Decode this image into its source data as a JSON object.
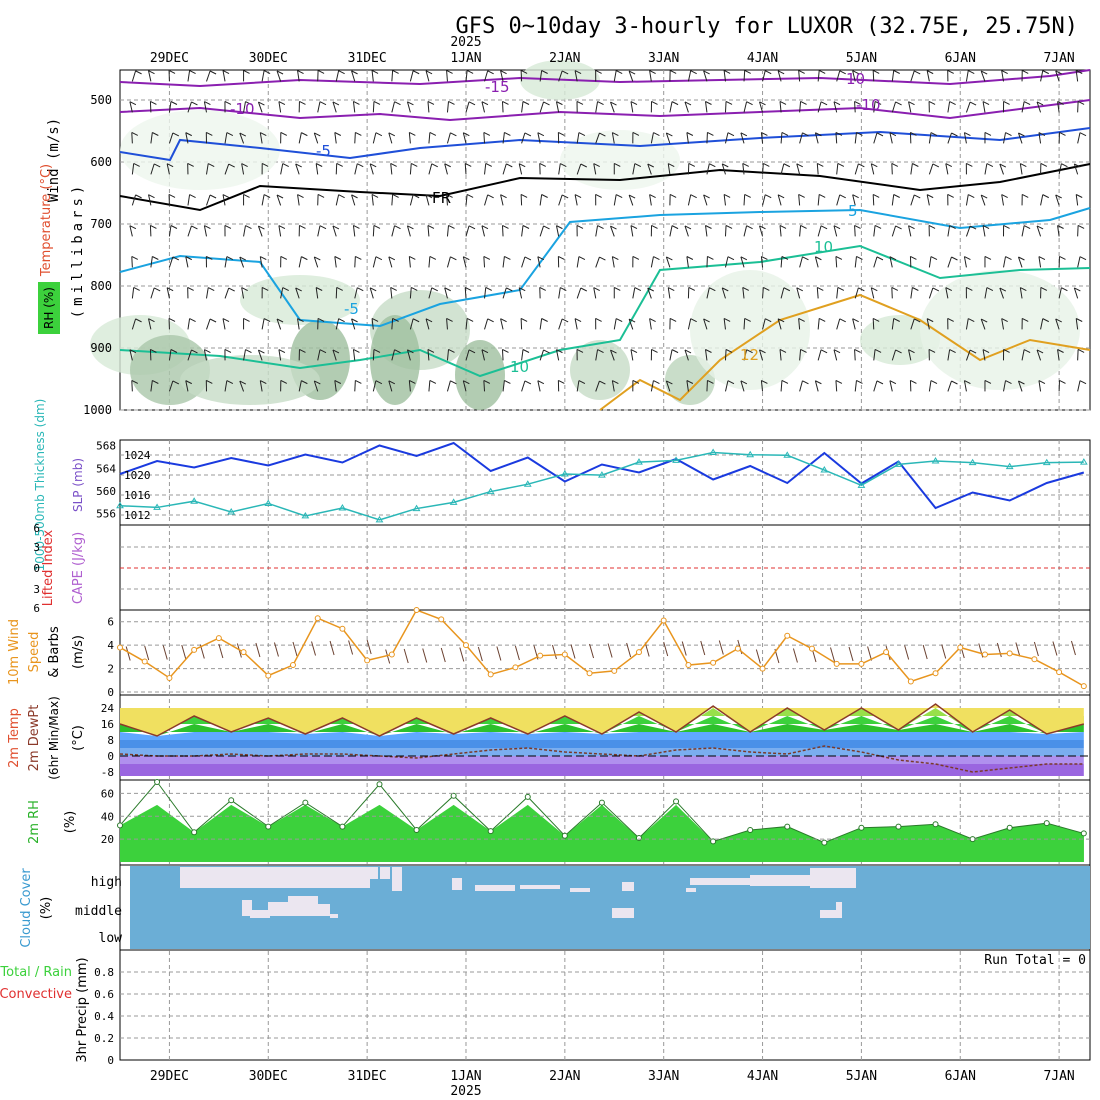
{
  "title": "GFS 0~10day 3-hourly for LUXOR (32.75E, 25.75N)",
  "year_label": "2025",
  "dates": [
    "29DEC",
    "30DEC",
    "31DEC",
    "1JAN",
    "2JAN",
    "3JAN",
    "4JAN",
    "5JAN",
    "6JAN",
    "7JAN"
  ],
  "panels": {
    "upper": {
      "labels": {
        "wind": "Wind (m/s)",
        "temperature": "Temperature (°C)",
        "rh": "RH (%)",
        "millibars": "(millibars)"
      },
      "yticks": [
        "500",
        "600",
        "700",
        "800",
        "900",
        "1000"
      ],
      "contour_labels": [
        "-15",
        "-10",
        "-5",
        "FR",
        "5",
        "10",
        "12",
        "-5",
        "-10",
        "10",
        "10"
      ]
    },
    "thickness": {
      "labels": {
        "thickness": "1000-500mb Thickness (dm)",
        "slp": "SLP (mb)"
      },
      "left_ticks": [
        "568",
        "564",
        "560",
        "556"
      ],
      "right_ticks": [
        "1024",
        "1020",
        "1016",
        "1012"
      ]
    },
    "cape": {
      "labels": {
        "li": "Lifted Index",
        "cape": "CAPE (J/kg)"
      },
      "yticks": [
        "6",
        "3",
        "0",
        "3",
        "6"
      ]
    },
    "wind10m": {
      "labels": {
        "main": "10m Wind",
        "speed": "Speed",
        "barbs": "& Barbs",
        "units": "(m/s)"
      },
      "yticks": [
        "6",
        "4",
        "2",
        "0"
      ]
    },
    "temp2m": {
      "labels": {
        "temp": "2m Temp",
        "dewpt": "2m DewPt",
        "minmax": "(6hr Min/Max)",
        "units": "(°C)"
      },
      "yticks": [
        "24",
        "16",
        "8",
        "0",
        "-8"
      ]
    },
    "rh2m": {
      "labels": {
        "rh": "2m RH",
        "units": "(%)"
      },
      "yticks": [
        "60",
        "40",
        "20"
      ]
    },
    "cloud": {
      "labels": {
        "cloud": "Cloud Cover",
        "units": "(%)"
      },
      "levels": [
        "high",
        "middle",
        "low"
      ]
    },
    "precip": {
      "labels": {
        "total": "Total / Rain",
        "conv": "Convective",
        "precip": "3hr Precip (mm)"
      },
      "yticks": [
        "0.8",
        "0.6",
        "0.4",
        "0.2",
        "0"
      ],
      "run_total": "Run Total = 0"
    }
  },
  "colors": {
    "cloud_bg": "#6baed6",
    "cloud_fill": "#ebe6f0",
    "slp": "#1a3adf",
    "thickness": "#2ab7b7",
    "wind10m": "#e8951e",
    "temp_outline": "#8b3a2a",
    "rh_fill": "#3cd13c",
    "li_zero": "#e03030"
  },
  "chart_data": [
    {
      "type": "line",
      "name": "thickness_slp",
      "x": [
        0,
        3,
        6,
        9,
        12,
        15,
        18,
        21,
        24,
        27,
        30,
        33,
        36,
        39,
        42,
        45,
        48,
        51,
        54,
        57,
        60,
        63,
        66,
        69,
        72,
        75,
        78
      ],
      "series": [
        {
          "name": "SLP (mb)",
          "values": [
            1020.2,
            1022.8,
            1021.5,
            1023.4,
            1021.9,
            1024.1,
            1022.5,
            1025.9,
            1023.8,
            1026.4,
            1020.8,
            1023.5,
            1018.7,
            1022.1,
            1020.5,
            1023.2,
            1019.1,
            1021.8,
            1018.4,
            1024.4,
            1018.3,
            1022.7,
            1013.4,
            1016.5,
            1014.9,
            1018.4,
            1020.5
          ]
        },
        {
          "name": "1000-500mb Thickness (dm)",
          "values": [
            557.4,
            557.1,
            558.2,
            556.3,
            557.8,
            555.6,
            557.0,
            554.9,
            556.9,
            558.0,
            559.9,
            561.2,
            563.0,
            562.8,
            565.1,
            565.4,
            566.8,
            566.4,
            566.3,
            563.7,
            561.0,
            564.7,
            565.3,
            565.0,
            564.3,
            565.0,
            565.1
          ]
        }
      ],
      "ylim_left": [
        554,
        569
      ],
      "ylim_right": [
        1010,
        1027
      ]
    },
    {
      "type": "line",
      "name": "10m_wind_speed",
      "x": [
        0,
        2,
        4,
        6,
        8,
        10,
        12,
        14,
        16,
        18,
        20,
        22,
        24,
        26,
        28,
        30,
        32,
        34,
        36,
        38,
        40,
        42,
        44,
        46,
        48,
        50,
        52,
        54,
        56,
        58,
        60,
        62,
        64,
        66,
        68,
        70,
        72,
        74,
        76,
        78
      ],
      "series": [
        {
          "name": "Speed",
          "values": [
            3.8,
            2.6,
            1.2,
            3.6,
            4.6,
            3.4,
            1.4,
            2.3,
            6.3,
            5.4,
            2.7,
            3.2,
            7.0,
            6.2,
            4.0,
            1.5,
            2.1,
            3.1,
            3.2,
            1.6,
            1.8,
            3.4,
            6.1,
            2.3,
            2.5,
            3.7,
            2.0,
            4.8,
            3.7,
            2.4,
            2.4,
            3.4,
            0.9,
            1.6,
            3.8,
            3.2,
            3.3,
            2.8,
            1.7,
            0.5
          ]
        }
      ],
      "ylim": [
        0,
        7
      ]
    },
    {
      "type": "area",
      "name": "2m_temperature",
      "x": [
        0,
        3,
        6,
        9,
        12,
        15,
        18,
        21,
        24,
        27,
        30,
        33,
        36,
        39,
        42,
        45,
        48,
        51,
        54,
        57,
        60,
        63,
        66,
        69,
        72,
        75,
        78
      ],
      "series": [
        {
          "name": "2m Temp",
          "values": [
            16,
            10,
            20,
            12,
            19,
            11,
            19,
            10,
            19,
            11,
            19,
            11,
            20,
            11,
            22,
            12,
            25,
            12,
            24,
            13,
            24,
            13,
            26,
            12,
            23,
            11,
            16
          ]
        },
        {
          "name": "2m DewPt",
          "values": [
            1,
            0,
            0,
            1,
            0,
            1,
            1,
            0,
            -1,
            1,
            3,
            4,
            2,
            1,
            0,
            3,
            4,
            2,
            1,
            5,
            2,
            -2,
            -4,
            -8,
            -6,
            -4,
            -4
          ]
        }
      ],
      "ylim": [
        -10,
        30
      ]
    },
    {
      "type": "area",
      "name": "2m_rh",
      "x": [
        0,
        3,
        6,
        9,
        12,
        15,
        18,
        21,
        24,
        27,
        30,
        33,
        36,
        39,
        42,
        45,
        48,
        51,
        54,
        57,
        60,
        63,
        66,
        69,
        72,
        75,
        78
      ],
      "series": [
        {
          "name": "2m RH",
          "values": [
            32,
            70,
            26,
            54,
            31,
            52,
            31,
            68,
            28,
            58,
            27,
            57,
            23,
            52,
            21,
            53,
            18,
            28,
            31,
            17,
            30,
            31,
            33,
            20,
            30,
            34,
            25
          ]
        }
      ],
      "ylim": [
        0,
        70
      ]
    },
    {
      "type": "bar",
      "name": "3hr_precip",
      "series": [
        {
          "name": "Total / Rain",
          "values": [
            0
          ]
        }
      ],
      "ylim": [
        0,
        1
      ]
    }
  ]
}
